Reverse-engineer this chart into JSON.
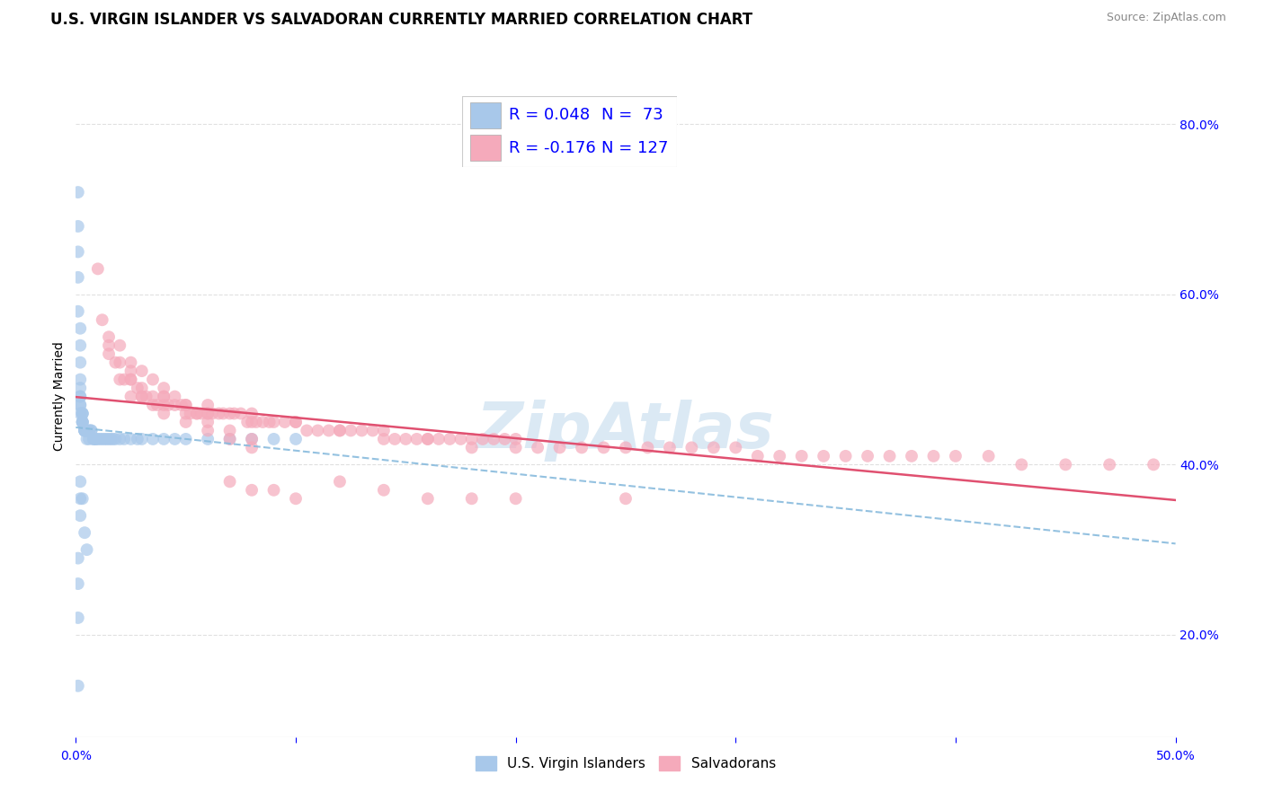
{
  "title": "U.S. VIRGIN ISLANDER VS SALVADORAN CURRENTLY MARRIED CORRELATION CHART",
  "source_text": "Source: ZipAtlas.com",
  "ylabel": "Currently Married",
  "xlim": [
    0.0,
    0.5
  ],
  "ylim": [
    0.08,
    0.88
  ],
  "xticks": [
    0.0,
    0.1,
    0.2,
    0.3,
    0.4,
    0.5
  ],
  "yticks": [
    0.2,
    0.4,
    0.6,
    0.8
  ],
  "xtick_labels_ends": [
    "0.0%",
    "50.0%"
  ],
  "ytick_labels": [
    "20.0%",
    "40.0%",
    "60.0%",
    "80.0%"
  ],
  "series1_name": "U.S. Virgin Islanders",
  "series1_color": "#a8c8ea",
  "series1_line_color": "#88bbdd",
  "series2_name": "Salvadorans",
  "series2_color": "#f5aabb",
  "series2_line_color": "#e05070",
  "watermark": "ZipAtlas",
  "watermark_color": "#b8d4ea",
  "background_color": "#ffffff",
  "grid_color": "#dddddd",
  "title_fontsize": 12,
  "axis_label_fontsize": 10,
  "tick_fontsize": 10,
  "legend_r1": "R = 0.048",
  "legend_n1": "N =  73",
  "legend_r2": "R = -0.176",
  "legend_n2": "N = 127",
  "legend_color_r": "blue",
  "s1_x": [
    0.001,
    0.001,
    0.001,
    0.001,
    0.001,
    0.002,
    0.002,
    0.002,
    0.002,
    0.002,
    0.002,
    0.002,
    0.002,
    0.002,
    0.002,
    0.003,
    0.003,
    0.003,
    0.003,
    0.003,
    0.003,
    0.003,
    0.004,
    0.004,
    0.004,
    0.004,
    0.004,
    0.005,
    0.005,
    0.005,
    0.005,
    0.006,
    0.006,
    0.006,
    0.007,
    0.007,
    0.008,
    0.008,
    0.009,
    0.009,
    0.01,
    0.011,
    0.012,
    0.013,
    0.014,
    0.015,
    0.016,
    0.017,
    0.018,
    0.02,
    0.022,
    0.025,
    0.028,
    0.03,
    0.035,
    0.04,
    0.045,
    0.05,
    0.06,
    0.07,
    0.08,
    0.09,
    0.1,
    0.003,
    0.004,
    0.005,
    0.002,
    0.002,
    0.002,
    0.001,
    0.001,
    0.001,
    0.001
  ],
  "s1_y": [
    0.72,
    0.68,
    0.65,
    0.62,
    0.58,
    0.56,
    0.54,
    0.52,
    0.5,
    0.49,
    0.48,
    0.48,
    0.47,
    0.47,
    0.46,
    0.46,
    0.46,
    0.46,
    0.45,
    0.45,
    0.45,
    0.45,
    0.44,
    0.44,
    0.44,
    0.44,
    0.44,
    0.44,
    0.44,
    0.44,
    0.43,
    0.44,
    0.44,
    0.43,
    0.44,
    0.44,
    0.43,
    0.43,
    0.43,
    0.43,
    0.43,
    0.43,
    0.43,
    0.43,
    0.43,
    0.43,
    0.43,
    0.43,
    0.43,
    0.43,
    0.43,
    0.43,
    0.43,
    0.43,
    0.43,
    0.43,
    0.43,
    0.43,
    0.43,
    0.43,
    0.43,
    0.43,
    0.43,
    0.36,
    0.32,
    0.3,
    0.38,
    0.36,
    0.34,
    0.29,
    0.26,
    0.22,
    0.14
  ],
  "s2_x": [
    0.01,
    0.012,
    0.015,
    0.018,
    0.02,
    0.022,
    0.025,
    0.028,
    0.03,
    0.032,
    0.035,
    0.037,
    0.04,
    0.042,
    0.045,
    0.048,
    0.05,
    0.052,
    0.055,
    0.057,
    0.06,
    0.062,
    0.065,
    0.067,
    0.07,
    0.072,
    0.075,
    0.078,
    0.08,
    0.082,
    0.085,
    0.088,
    0.09,
    0.095,
    0.1,
    0.105,
    0.11,
    0.115,
    0.12,
    0.125,
    0.13,
    0.135,
    0.14,
    0.145,
    0.15,
    0.155,
    0.16,
    0.165,
    0.17,
    0.175,
    0.18,
    0.185,
    0.19,
    0.195,
    0.2,
    0.21,
    0.22,
    0.23,
    0.24,
    0.25,
    0.26,
    0.27,
    0.28,
    0.29,
    0.3,
    0.31,
    0.32,
    0.33,
    0.34,
    0.35,
    0.36,
    0.37,
    0.38,
    0.39,
    0.4,
    0.415,
    0.43,
    0.45,
    0.47,
    0.49,
    0.025,
    0.03,
    0.035,
    0.04,
    0.05,
    0.06,
    0.07,
    0.08,
    0.025,
    0.03,
    0.04,
    0.05,
    0.06,
    0.015,
    0.02,
    0.025,
    0.12,
    0.14,
    0.16,
    0.18,
    0.07,
    0.08,
    0.09,
    0.1,
    0.2,
    0.25,
    0.04,
    0.06,
    0.08,
    0.1,
    0.12,
    0.14,
    0.16,
    0.18,
    0.2,
    0.015,
    0.02,
    0.025,
    0.03,
    0.035,
    0.04,
    0.045,
    0.05,
    0.055,
    0.06,
    0.07,
    0.08
  ],
  "s2_y": [
    0.63,
    0.57,
    0.54,
    0.52,
    0.5,
    0.5,
    0.5,
    0.49,
    0.48,
    0.48,
    0.48,
    0.47,
    0.47,
    0.47,
    0.47,
    0.47,
    0.46,
    0.46,
    0.46,
    0.46,
    0.46,
    0.46,
    0.46,
    0.46,
    0.46,
    0.46,
    0.46,
    0.45,
    0.45,
    0.45,
    0.45,
    0.45,
    0.45,
    0.45,
    0.45,
    0.44,
    0.44,
    0.44,
    0.44,
    0.44,
    0.44,
    0.44,
    0.44,
    0.43,
    0.43,
    0.43,
    0.43,
    0.43,
    0.43,
    0.43,
    0.43,
    0.43,
    0.43,
    0.43,
    0.43,
    0.42,
    0.42,
    0.42,
    0.42,
    0.42,
    0.42,
    0.42,
    0.42,
    0.42,
    0.42,
    0.41,
    0.41,
    0.41,
    0.41,
    0.41,
    0.41,
    0.41,
    0.41,
    0.41,
    0.41,
    0.41,
    0.4,
    0.4,
    0.4,
    0.4,
    0.48,
    0.48,
    0.47,
    0.46,
    0.45,
    0.44,
    0.44,
    0.43,
    0.5,
    0.49,
    0.48,
    0.47,
    0.46,
    0.53,
    0.52,
    0.51,
    0.38,
    0.37,
    0.36,
    0.36,
    0.38,
    0.37,
    0.37,
    0.36,
    0.36,
    0.36,
    0.48,
    0.47,
    0.46,
    0.45,
    0.44,
    0.43,
    0.43,
    0.42,
    0.42,
    0.55,
    0.54,
    0.52,
    0.51,
    0.5,
    0.49,
    0.48,
    0.47,
    0.46,
    0.45,
    0.43,
    0.42
  ]
}
